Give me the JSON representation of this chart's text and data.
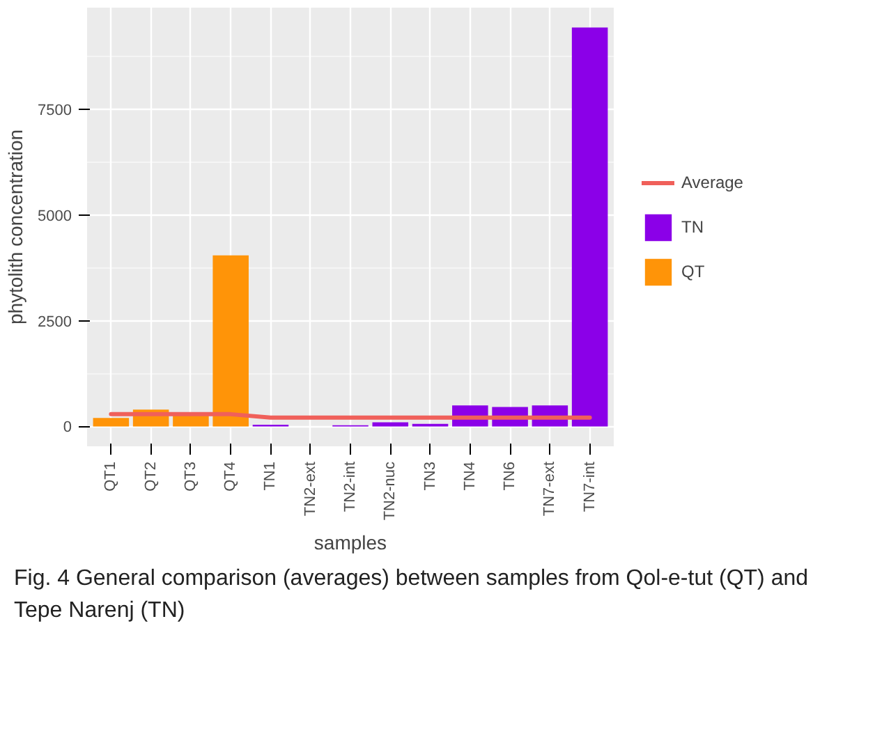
{
  "chart_data": {
    "type": "bar",
    "xlabel": "samples",
    "ylabel": "phytolith concentration",
    "categories": [
      "QT1",
      "QT2",
      "QT3",
      "QT4",
      "TN1",
      "TN2-ext",
      "TN2-int",
      "TN2-nuc",
      "TN3",
      "TN4",
      "TN6",
      "TN7-ext",
      "TN7-int"
    ],
    "series": [
      {
        "name": "Average",
        "type": "line",
        "color": "#f0605a",
        "values": [
          290,
          290,
          290,
          290,
          210,
          210,
          210,
          210,
          210,
          210,
          210,
          210,
          210
        ]
      },
      {
        "name": "TN",
        "color": "#8b00e8",
        "values": [
          null,
          null,
          null,
          null,
          40,
          0,
          30,
          100,
          60,
          500,
          460,
          500,
          9440
        ]
      },
      {
        "name": "QT",
        "color": "#ff9408",
        "values": [
          200,
          400,
          300,
          4050,
          null,
          null,
          null,
          null,
          null,
          null,
          null,
          null,
          null
        ]
      }
    ],
    "ylim": [
      -470,
      9910
    ],
    "yticks": [
      0,
      2500,
      5000,
      7500
    ],
    "grid": true,
    "legend": "right",
    "annotations": [
      "Fig. 4  General comparison (averages) between samples from Qol-e-tut (QT) and Tepe Narenj (TN)"
    ]
  }
}
